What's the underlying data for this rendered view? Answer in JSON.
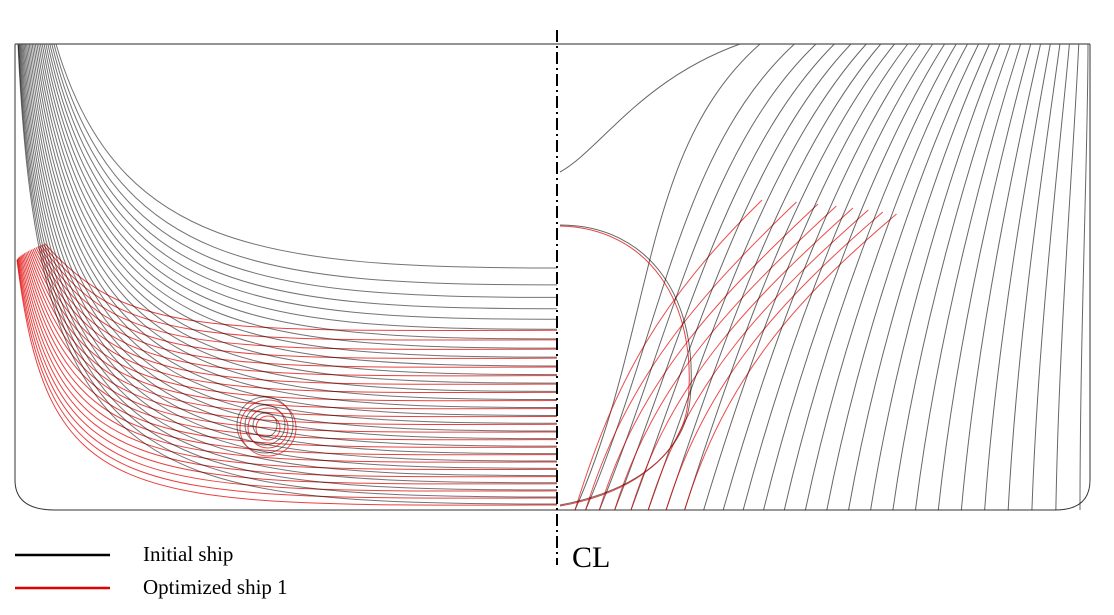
{
  "legend": {
    "items": [
      {
        "label": "Initial ship",
        "color": "#000000"
      },
      {
        "label": "Optimized ship 1",
        "color": "#e00000"
      }
    ]
  },
  "centerline_label": "CL"
}
